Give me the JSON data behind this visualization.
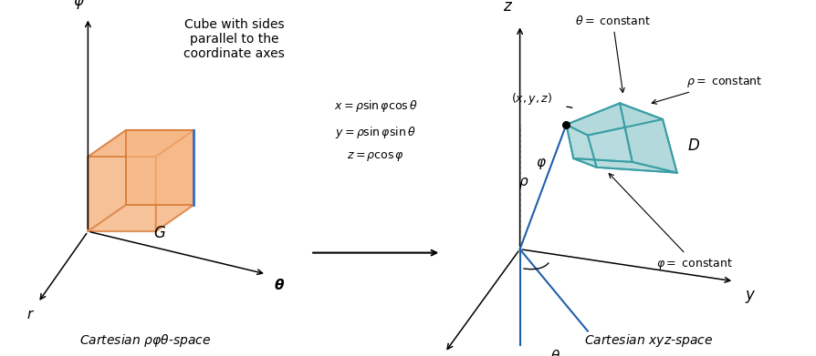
{
  "fig_width": 8.95,
  "fig_height": 3.91,
  "bg_color": "#ffffff",
  "left_ax_title": "Cube with sides\nparallel to the\ncoordinate axes",
  "cube_face_color": "#f5b07a",
  "cube_edge_color": "#d4722a",
  "cube_highlight_edge": "#3a6bc4",
  "eq_line1": "$x = \\rho \\sin \\varphi \\cos \\theta$",
  "eq_line2": "$y = \\rho \\sin \\varphi \\sin \\theta$",
  "eq_line3": "$z = \\rho \\cos \\varphi$",
  "teal_edge": "#3a9ea5",
  "teal_fill": "#a8d4d8",
  "teal_fill_alpha": 0.55,
  "blue_line": "#2060a8",
  "left_label": "Cartesian $\\rho\\varphi\\theta$-space",
  "right_label": "Cartesian $xyz$-space"
}
